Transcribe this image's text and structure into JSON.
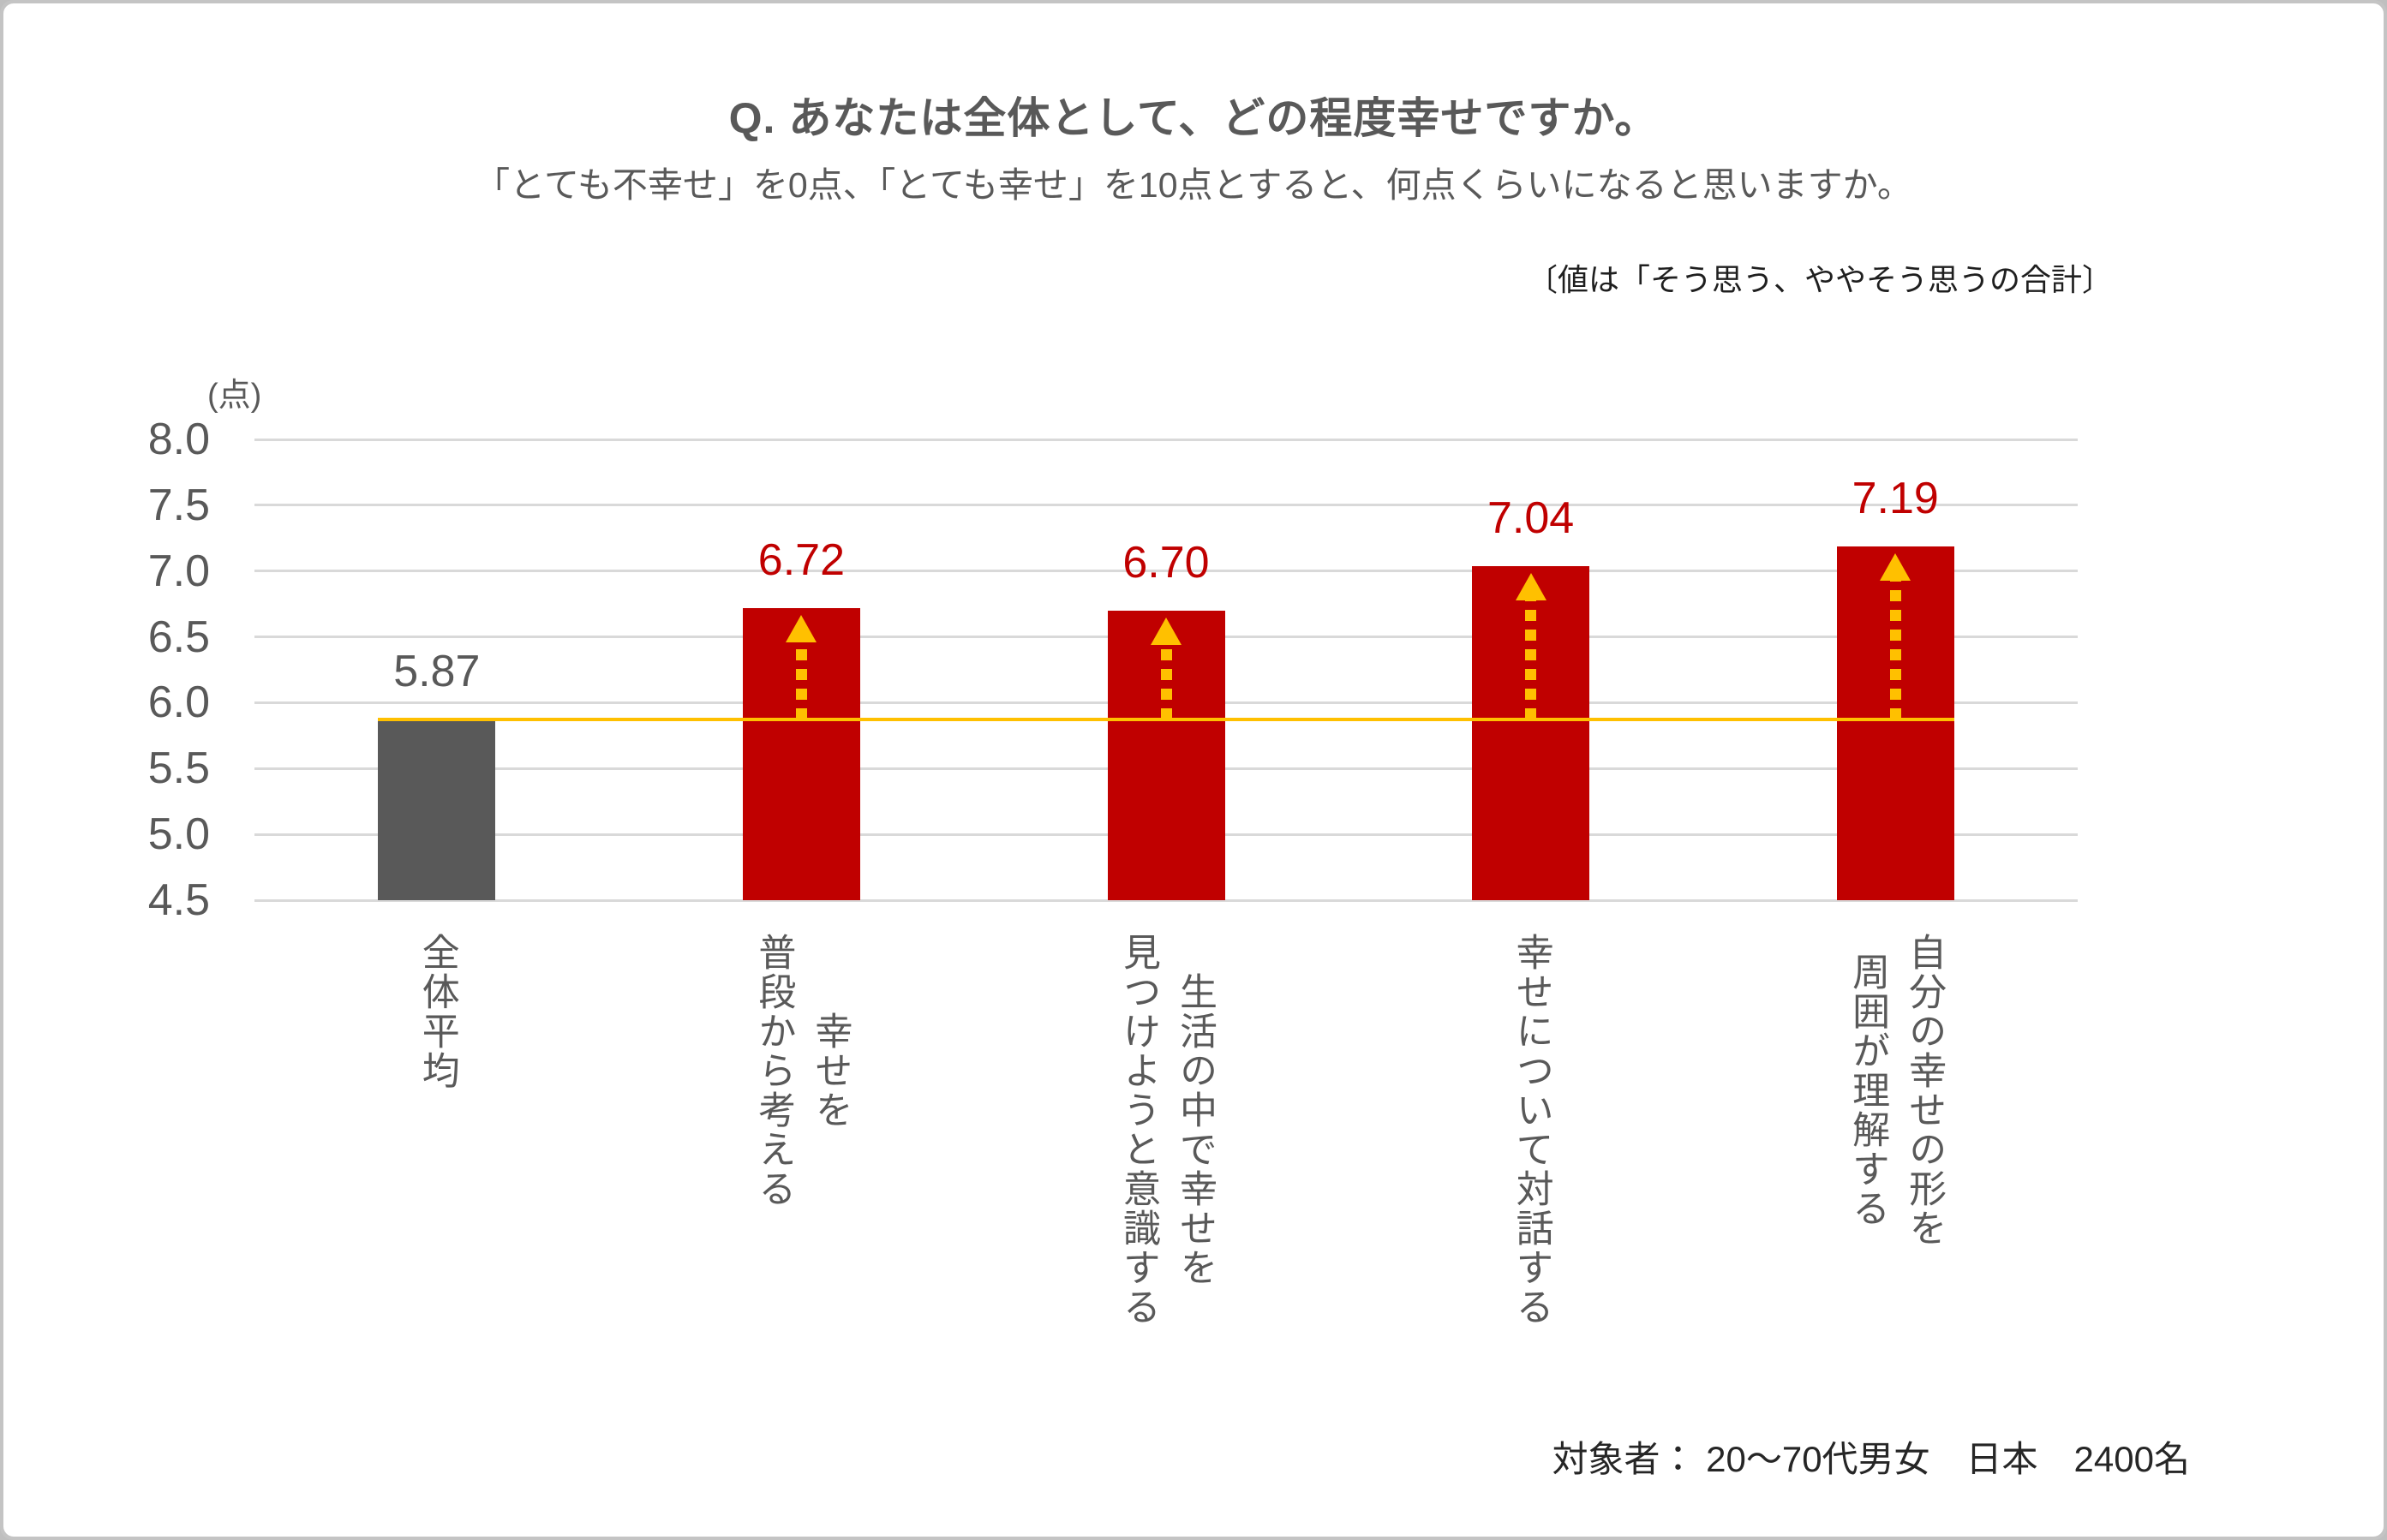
{
  "header": {
    "title": "Q. あなたは全体として、どの程度幸せですか。",
    "subtitle": "「とても不幸せ」を0点、「とても幸せ」を10点とすると、何点くらいになると思いますか。",
    "note": "〔値は「そう思う、ややそう思うの合計〕"
  },
  "footer": {
    "audience": "対象者： 20～70代男女　日本　2400名"
  },
  "chart_data": {
    "type": "bar",
    "title": "Q. あなたは全体として、どの程度幸せですか。",
    "unit_label": "(点)",
    "categories": [
      "全体平均",
      "幸せを\n普段から考える",
      "生活の中で幸せを\n見つけようと意識する",
      "幸せについて対話する",
      "自分の幸せの形を\n周囲が理解する"
    ],
    "values": [
      5.87,
      6.72,
      6.7,
      7.04,
      7.19
    ],
    "value_labels": [
      "5.87",
      "6.72",
      "6.70",
      "7.04",
      "7.19"
    ],
    "bar_colors": [
      "#595959",
      "#C00000",
      "#C00000",
      "#C00000",
      "#C00000"
    ],
    "value_label_colors": [
      "#595959",
      "#C00000",
      "#C00000",
      "#C00000",
      "#C00000"
    ],
    "arrows": [
      false,
      true,
      true,
      true,
      true
    ],
    "ylim": [
      4.5,
      8.0
    ],
    "yticks": [
      "8.0",
      "7.5",
      "7.0",
      "6.5",
      "6.0",
      "5.5",
      "5.0",
      "4.5"
    ],
    "grid": true,
    "legend": null,
    "baseline": {
      "value": 5.87,
      "color": "#FFC000"
    },
    "arrow_color": "#FFC000"
  },
  "colors": {
    "bar_red": "#C00000",
    "bar_gray": "#595959",
    "reference_yellow": "#FFC000",
    "gridline": "#D9D9D9",
    "text_gray": "#595959",
    "text_dark": "#262626",
    "frame_border": "#c4c4c4"
  }
}
